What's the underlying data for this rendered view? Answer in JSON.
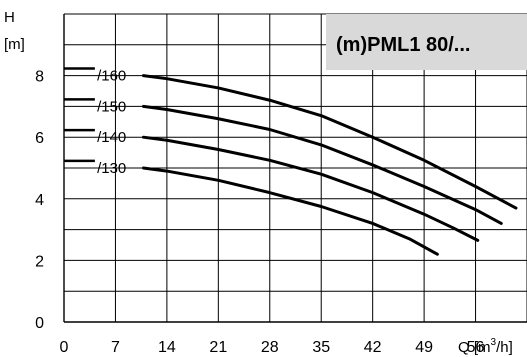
{
  "chart_data": {
    "type": "line",
    "title": "(m)PML1 80/...",
    "colors": {
      "title_box": "#d9d9d9",
      "grid": "#000000",
      "curve": "#000000"
    },
    "ylabel_top": "H",
    "ylabel_unit": "[m]",
    "xlabel_prefix": "Q [m",
    "xlabel_sup": "3",
    "xlabel_suffix": "/h]",
    "xlim": [
      0,
      63
    ],
    "ylim": [
      0,
      10
    ],
    "x_ticks": [
      0,
      7,
      14,
      21,
      28,
      35,
      42,
      49,
      56
    ],
    "x_tick_labels": [
      "0",
      "7",
      "14",
      "21",
      "28",
      "35",
      "42",
      "49",
      "56"
    ],
    "y_ticks": [
      0,
      2,
      4,
      6,
      8
    ],
    "y_tick_labels": [
      "0",
      "2",
      "4",
      "6",
      "8"
    ],
    "grid": true,
    "series": [
      {
        "name": "/160",
        "dash_x": [
          0,
          4.2
        ],
        "points": [
          [
            10.8,
            8.0
          ],
          [
            14,
            7.9
          ],
          [
            21,
            7.6
          ],
          [
            28,
            7.2
          ],
          [
            35,
            6.7
          ],
          [
            42,
            6.0
          ],
          [
            49,
            5.25
          ],
          [
            56,
            4.4
          ],
          [
            61.5,
            3.7
          ]
        ]
      },
      {
        "name": "/150",
        "dash_x": [
          0,
          4.2
        ],
        "points": [
          [
            10.8,
            7.0
          ],
          [
            14,
            6.9
          ],
          [
            21,
            6.6
          ],
          [
            28,
            6.25
          ],
          [
            35,
            5.75
          ],
          [
            42,
            5.1
          ],
          [
            49,
            4.4
          ],
          [
            56,
            3.65
          ],
          [
            59.5,
            3.2
          ]
        ]
      },
      {
        "name": "/140",
        "dash_x": [
          0,
          4.2
        ],
        "points": [
          [
            10.8,
            6.0
          ],
          [
            14,
            5.9
          ],
          [
            21,
            5.6
          ],
          [
            28,
            5.25
          ],
          [
            35,
            4.8
          ],
          [
            42,
            4.2
          ],
          [
            49,
            3.5
          ],
          [
            53,
            3.05
          ],
          [
            56.3,
            2.65
          ]
        ]
      },
      {
        "name": "/130",
        "dash_x": [
          0,
          4.2
        ],
        "points": [
          [
            10.8,
            5.0
          ],
          [
            14,
            4.9
          ],
          [
            21,
            4.6
          ],
          [
            28,
            4.2
          ],
          [
            35,
            3.75
          ],
          [
            42,
            3.2
          ],
          [
            47,
            2.7
          ],
          [
            50.8,
            2.2
          ]
        ]
      }
    ]
  }
}
